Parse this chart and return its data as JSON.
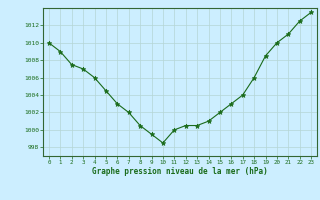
{
  "x": [
    0,
    1,
    2,
    3,
    4,
    5,
    6,
    7,
    8,
    9,
    10,
    11,
    12,
    13,
    14,
    15,
    16,
    17,
    18,
    19,
    20,
    21,
    22,
    23
  ],
  "y": [
    1010,
    1009,
    1007.5,
    1007,
    1006,
    1004.5,
    1003,
    1002,
    1000.5,
    999.5,
    998.5,
    1000,
    1000.5,
    1000.5,
    1001,
    1002,
    1003,
    1004,
    1006,
    1008.5,
    1010,
    1011,
    1012.5,
    1013.5
  ],
  "line_color": "#1a6b1a",
  "marker": "*",
  "marker_color": "#1a6b1a",
  "bg_color": "#cceeff",
  "grid_color": "#b5d5d5",
  "xlabel": "Graphe pression niveau de la mer (hPa)",
  "xlabel_color": "#1a6b1a",
  "ylabel_ticks": [
    998,
    1000,
    1002,
    1004,
    1006,
    1008,
    1010,
    1012
  ],
  "ylim": [
    997.0,
    1014.0
  ],
  "xlim": [
    -0.5,
    23.5
  ],
  "xticks": [
    0,
    1,
    2,
    3,
    4,
    5,
    6,
    7,
    8,
    9,
    10,
    11,
    12,
    13,
    14,
    15,
    16,
    17,
    18,
    19,
    20,
    21,
    22,
    23
  ]
}
